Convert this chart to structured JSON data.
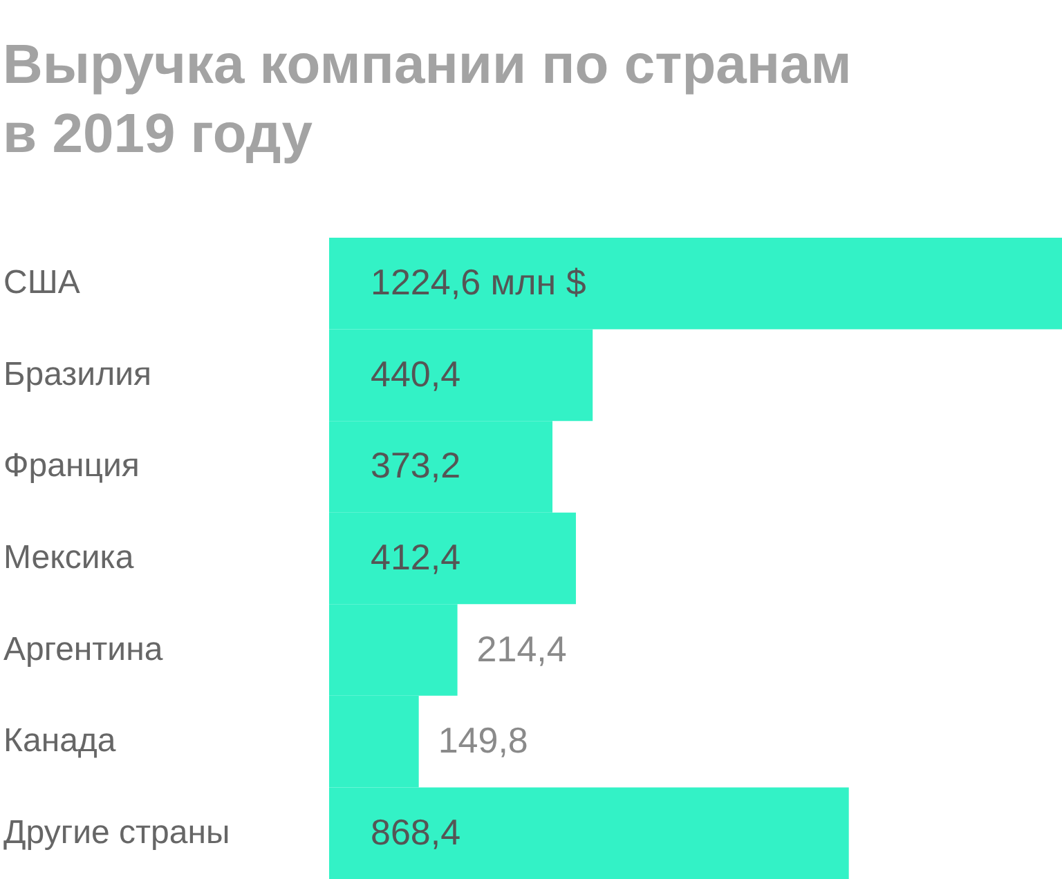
{
  "chart_data": {
    "type": "bar",
    "orientation": "horizontal",
    "title": "Выручка компании по странам\nв 2019 году",
    "categories": [
      "США",
      "Бразилия",
      "Франция",
      "Мексика",
      "Аргентина",
      "Канада",
      "Другие страны"
    ],
    "values": [
      1224.6,
      440.4,
      373.2,
      412.4,
      214.4,
      149.8,
      868.4
    ],
    "value_labels": [
      "1224,6 млн $",
      "440,4",
      "373,2",
      "412,4",
      "214,4",
      "149,8",
      "868,4"
    ],
    "color": "#33f2c6"
  }
}
